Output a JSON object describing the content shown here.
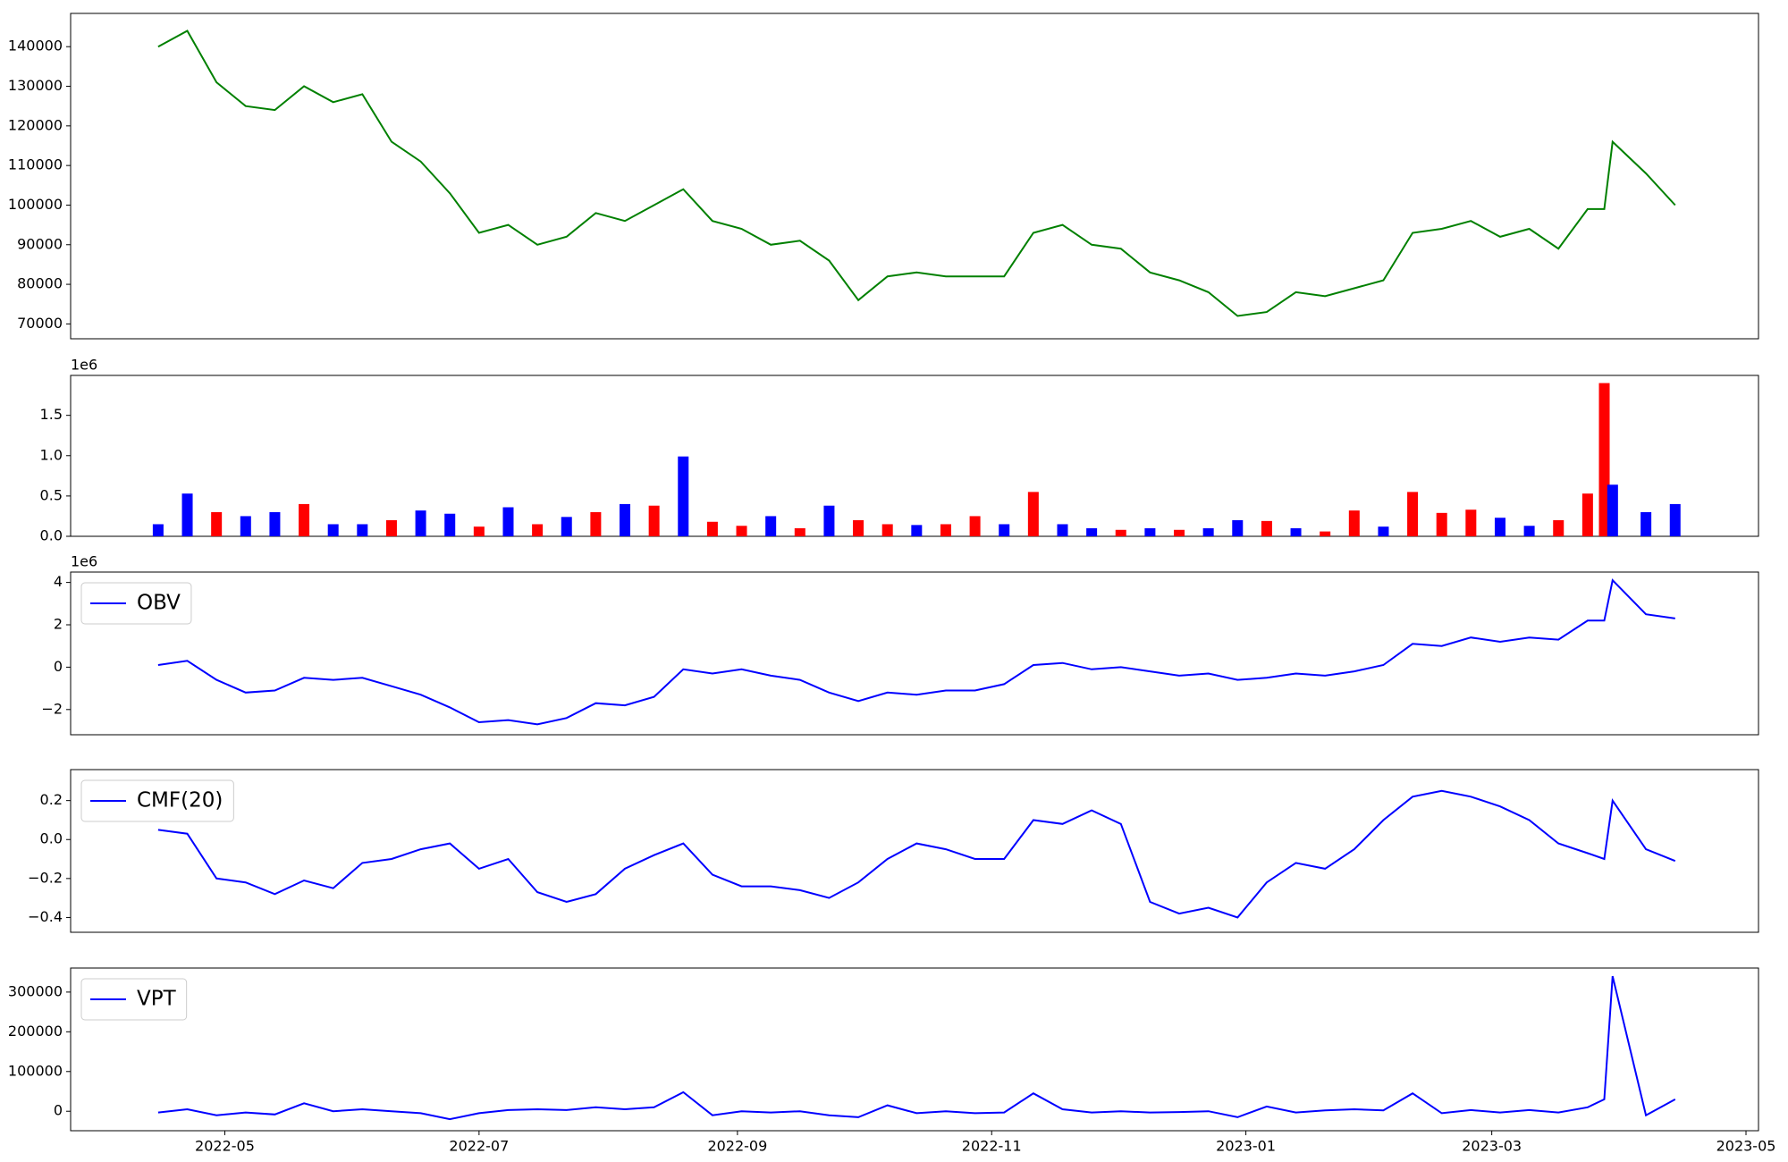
{
  "chart_data": [
    {
      "type": "line",
      "color": "#008000",
      "values": [
        140000,
        144000,
        131000,
        125000,
        124000,
        130000,
        126000,
        128000,
        116000,
        111000,
        103000,
        93000,
        95000,
        90000,
        92000,
        98000,
        96000,
        100000,
        104000,
        96000,
        94000,
        90000,
        91000,
        86000,
        76000,
        82000,
        83000,
        82000,
        82000,
        82000,
        93000,
        95000,
        90000,
        89000,
        83000,
        81000,
        78000,
        72000,
        73000,
        78000,
        77000,
        79000,
        81000,
        93000,
        94000,
        96000,
        92000,
        94000,
        89000,
        99000,
        99000,
        116000,
        108000,
        100000
      ],
      "ylim": [
        66250,
        148400
      ],
      "yticks": [
        70000,
        80000,
        90000,
        100000,
        110000,
        120000,
        130000,
        140000
      ]
    },
    {
      "type": "bar",
      "offset_label": "1e6",
      "values": [
        150000,
        530000,
        300000,
        250000,
        300000,
        400000,
        150000,
        150000,
        200000,
        320000,
        280000,
        120000,
        360000,
        150000,
        240000,
        300000,
        400000,
        380000,
        990000,
        180000,
        130000,
        250000,
        100000,
        380000,
        200000,
        150000,
        140000,
        150000,
        250000,
        150000,
        550000,
        150000,
        100000,
        80000,
        100000,
        80000,
        100000,
        200000,
        190000,
        100000,
        60000,
        320000,
        120000,
        550000,
        290000,
        330000,
        230000,
        130000,
        200000,
        530000,
        1900000,
        640000,
        300000,
        400000
      ],
      "colors": [
        "blue",
        "blue",
        "red",
        "blue",
        "blue",
        "red",
        "blue",
        "blue",
        "red",
        "blue",
        "blue",
        "red",
        "blue",
        "red",
        "blue",
        "red",
        "blue",
        "red",
        "blue",
        "red",
        "red",
        "blue",
        "red",
        "blue",
        "red",
        "red",
        "blue",
        "red",
        "red",
        "blue",
        "red",
        "blue",
        "blue",
        "red",
        "blue",
        "red",
        "blue",
        "blue",
        "red",
        "blue",
        "red",
        "red",
        "blue",
        "red",
        "red",
        "red",
        "blue",
        "blue",
        "red",
        "red",
        "red",
        "blue",
        "blue",
        "blue"
      ],
      "ylim": [
        0,
        1995000
      ],
      "yticks": [
        {
          "value": 0,
          "label": "0.0"
        },
        {
          "value": 500000,
          "label": "0.5"
        },
        {
          "value": 1000000,
          "label": "1.0"
        },
        {
          "value": 1500000,
          "label": "1.5"
        }
      ]
    },
    {
      "type": "line",
      "offset_label": "1e6",
      "legend": "upper left",
      "series": [
        {
          "name": "OBV",
          "color": "#0000ff",
          "values": [
            100000,
            300000,
            -600000,
            -1200000,
            -1100000,
            -500000,
            -600000,
            -500000,
            -900000,
            -1300000,
            -1900000,
            -2600000,
            -2500000,
            -2700000,
            -2400000,
            -1700000,
            -1800000,
            -1400000,
            -100000,
            -300000,
            -100000,
            -400000,
            -600000,
            -1200000,
            -1600000,
            -1200000,
            -1300000,
            -1100000,
            -1100000,
            -800000,
            100000,
            200000,
            -100000,
            0,
            -200000,
            -400000,
            -300000,
            -600000,
            -500000,
            -300000,
            -400000,
            -200000,
            100000,
            1100000,
            1000000,
            1400000,
            1200000,
            1400000,
            1300000,
            2200000,
            2200000,
            4100000,
            2500000,
            2300000
          ]
        }
      ],
      "ylim": [
        -3190000,
        4490000
      ],
      "yticks": [
        {
          "value": -2000000,
          "label": "−2"
        },
        {
          "value": 0,
          "label": "0"
        },
        {
          "value": 2000000,
          "label": "2"
        },
        {
          "value": 4000000,
          "label": "4"
        }
      ]
    },
    {
      "type": "line",
      "legend": "upper left",
      "series": [
        {
          "name": "CMF(20)",
          "color": "#0000ff",
          "values": [
            0.05,
            0.03,
            -0.2,
            -0.22,
            -0.28,
            -0.21,
            -0.25,
            -0.12,
            -0.1,
            -0.05,
            -0.02,
            -0.15,
            -0.1,
            -0.27,
            -0.32,
            -0.28,
            -0.15,
            -0.08,
            -0.02,
            -0.18,
            -0.24,
            -0.24,
            -0.26,
            -0.3,
            -0.22,
            -0.1,
            -0.02,
            -0.05,
            -0.1,
            -0.1,
            0.1,
            0.08,
            0.15,
            0.08,
            -0.32,
            -0.38,
            -0.35,
            -0.4,
            -0.22,
            -0.12,
            -0.15,
            -0.05,
            0.1,
            0.22,
            0.25,
            0.22,
            0.17,
            0.1,
            -0.02,
            -0.07,
            -0.1,
            0.2,
            -0.05,
            -0.11
          ]
        }
      ],
      "ylim": [
        -0.476,
        0.359
      ],
      "yticks": [
        {
          "value": -0.4,
          "label": "−0.4"
        },
        {
          "value": -0.2,
          "label": "−0.2"
        },
        {
          "value": 0,
          "label": "0.0"
        },
        0.2
      ]
    },
    {
      "type": "line",
      "legend": "upper left",
      "series": [
        {
          "name": "VPT",
          "color": "#0000ff",
          "values": [
            -3000,
            5000,
            -10000,
            -3000,
            -8000,
            20000,
            0,
            5000,
            0,
            -5000,
            -20000,
            -5000,
            3000,
            5000,
            3000,
            10000,
            5000,
            10000,
            48000,
            -10000,
            0,
            -3000,
            0,
            -10000,
            -15000,
            15000,
            -5000,
            0,
            -5000,
            -3000,
            45000,
            5000,
            -3000,
            0,
            -3000,
            -2000,
            0,
            -15000,
            12000,
            -3000,
            2000,
            5000,
            2000,
            45000,
            -5000,
            3000,
            -3000,
            3000,
            -3000,
            10000,
            30000,
            340000,
            -10000,
            30000
          ]
        }
      ],
      "ylim": [
        -49000,
        360500
      ],
      "yticks": [
        0,
        100000,
        200000,
        300000
      ],
      "x": [
        "2022-04-15",
        "2022-04-22",
        "2022-04-29",
        "2022-05-06",
        "2022-05-13",
        "2022-05-20",
        "2022-05-27",
        "2022-06-03",
        "2022-06-10",
        "2022-06-17",
        "2022-06-24",
        "2022-07-01",
        "2022-07-08",
        "2022-07-15",
        "2022-07-22",
        "2022-07-29",
        "2022-08-05",
        "2022-08-12",
        "2022-08-19",
        "2022-08-26",
        "2022-09-02",
        "2022-09-09",
        "2022-09-16",
        "2022-09-23",
        "2022-09-30",
        "2022-10-07",
        "2022-10-14",
        "2022-10-21",
        "2022-10-28",
        "2022-11-04",
        "2022-11-11",
        "2022-11-18",
        "2022-11-25",
        "2022-12-02",
        "2022-12-09",
        "2022-12-16",
        "2022-12-23",
        "2022-12-30",
        "2023-01-06",
        "2023-01-13",
        "2023-01-20",
        "2023-01-27",
        "2023-02-03",
        "2023-02-10",
        "2023-02-17",
        "2023-02-24",
        "2023-03-03",
        "2023-03-10",
        "2023-03-17",
        "2023-03-24",
        "2023-03-28",
        "2023-03-30",
        "2023-04-07",
        "2023-04-14"
      ],
      "xlim": [
        "2022-03-25",
        "2023-05-04"
      ],
      "xticks": [
        "2022-05",
        "2022-07",
        "2022-09",
        "2022-11",
        "2023-01",
        "2023-03",
        "2023-05"
      ]
    }
  ]
}
